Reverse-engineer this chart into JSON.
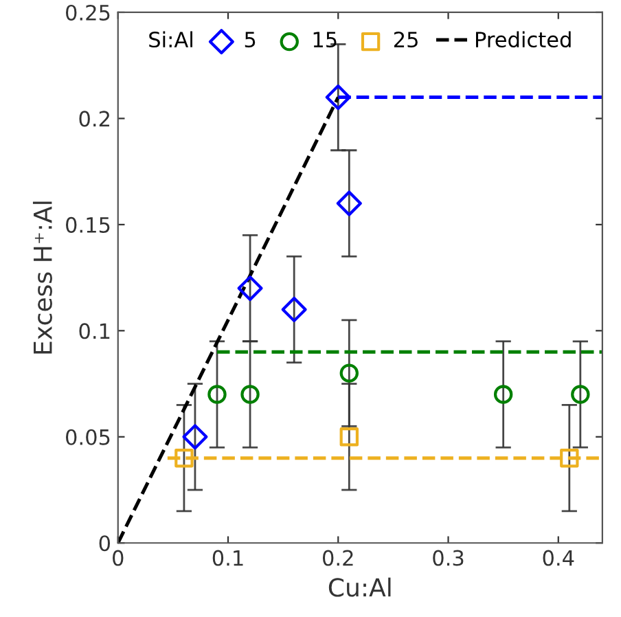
{
  "chart_data": {
    "type": "scatter",
    "xlabel": "Cu:Al",
    "ylabel": "Excess H⁺:Al",
    "legend_title": "Si:Al",
    "xlim": [
      0,
      0.44
    ],
    "xticks": [
      0,
      0.1,
      0.2,
      0.3,
      0.4
    ],
    "ylim": [
      0,
      0.25
    ],
    "yticks": [
      0,
      0.05,
      0.1,
      0.15,
      0.2,
      0.25
    ],
    "grid": false,
    "legend": "top",
    "series": [
      {
        "name": "5",
        "marker": "diamond",
        "color": "#0000ff",
        "x": [
          0.07,
          0.12,
          0.16,
          0.2,
          0.21
        ],
        "values": [
          0.05,
          0.12,
          0.11,
          0.21,
          0.16
        ],
        "errors": [
          0.025,
          0.025,
          0.025,
          0.025,
          0.025
        ]
      },
      {
        "name": "15",
        "marker": "circle",
        "color": "#008000",
        "x": [
          0.09,
          0.12,
          0.21,
          0.35,
          0.42
        ],
        "values": [
          0.07,
          0.07,
          0.08,
          0.07,
          0.07
        ],
        "errors": [
          0.025,
          0.025,
          0.025,
          0.025,
          0.025
        ]
      },
      {
        "name": "25",
        "marker": "square",
        "color": "#edb120",
        "x": [
          0.06,
          0.21,
          0.41
        ],
        "values": [
          0.04,
          0.05,
          0.04
        ],
        "errors": [
          0.025,
          0.025,
          0.025
        ]
      },
      {
        "name": "Predicted",
        "type": "line",
        "line_style": "dashed",
        "color": "#000000",
        "x": [
          0,
          0.2
        ],
        "values": [
          0,
          0.21
        ]
      },
      {
        "type": "line",
        "line_style": "dashed",
        "color": "#0000ff",
        "x": [
          0.2,
          0.44
        ],
        "values": [
          0.21,
          0.21
        ]
      },
      {
        "type": "line",
        "line_style": "dashed",
        "color": "#008000",
        "x": [
          0.09,
          0.44
        ],
        "values": [
          0.09,
          0.09
        ]
      },
      {
        "type": "line",
        "line_style": "dashed",
        "color": "#edb120",
        "x": [
          0.045,
          0.44
        ],
        "values": [
          0.04,
          0.04
        ]
      }
    ]
  }
}
